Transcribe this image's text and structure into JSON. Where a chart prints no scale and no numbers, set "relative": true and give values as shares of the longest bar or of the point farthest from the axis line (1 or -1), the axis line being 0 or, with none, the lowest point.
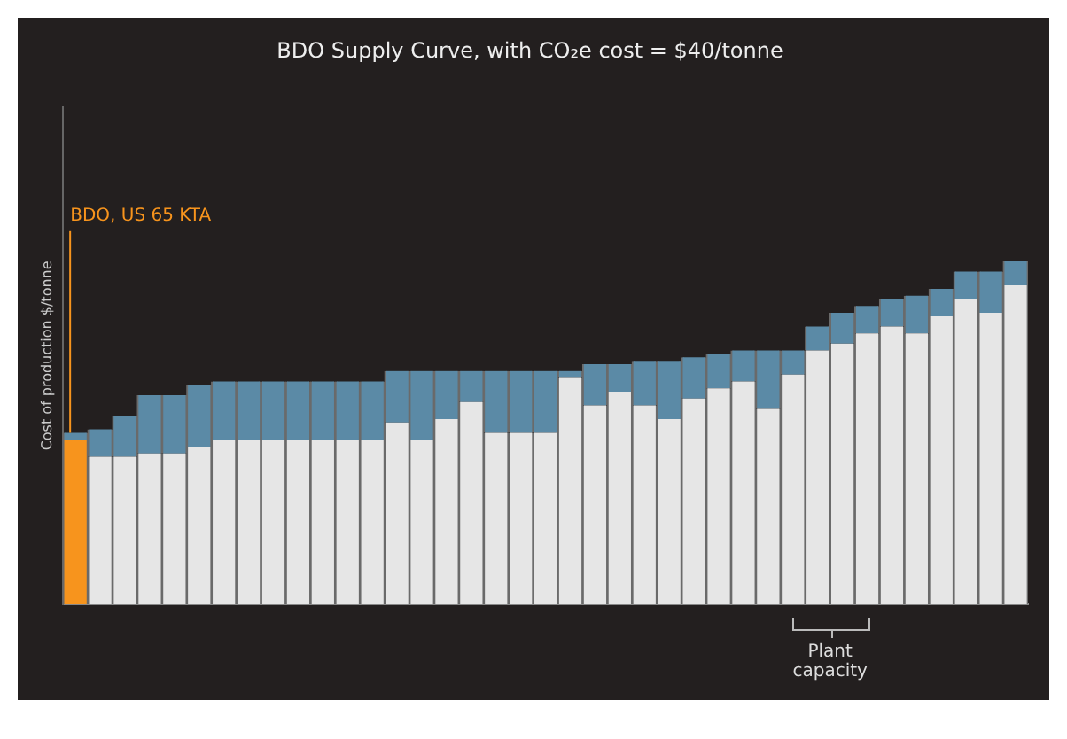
{
  "chart_data": {
    "type": "bar",
    "title": "BDO Supply Curve, with CO₂e cost = $40/tonne",
    "ylabel": "Cost of production $/tonne",
    "annotations": [
      "BDO, US 65 KTA",
      "Plant capacity"
    ],
    "categories": [
      null,
      null,
      null,
      null,
      null,
      null,
      null,
      null,
      null,
      null,
      null,
      null,
      null,
      null,
      null,
      null,
      null,
      null,
      null,
      null,
      null,
      null,
      null,
      null,
      null,
      null,
      null,
      null,
      null,
      null,
      null,
      null,
      null,
      null,
      null,
      null,
      null,
      null,
      null
    ],
    "stacked": true,
    "relative": true,
    "legend": false,
    "series": [
      {
        "colors": [
          "#f7941d",
          "#e6e6e6",
          "#e6e6e6",
          "#e6e6e6",
          "#e6e6e6",
          "#e6e6e6",
          "#e6e6e6",
          "#e6e6e6",
          "#e6e6e6",
          "#e6e6e6",
          "#e6e6e6",
          "#e6e6e6",
          "#e6e6e6",
          "#e6e6e6",
          "#e6e6e6",
          "#e6e6e6",
          "#e6e6e6",
          "#e6e6e6",
          "#e6e6e6",
          "#e6e6e6",
          "#e6e6e6",
          "#e6e6e6",
          "#e6e6e6",
          "#e6e6e6",
          "#e6e6e6",
          "#e6e6e6",
          "#e6e6e6",
          "#e6e6e6",
          "#e6e6e6",
          "#e6e6e6",
          "#e6e6e6",
          "#e6e6e6",
          "#e6e6e6",
          "#e6e6e6",
          "#e6e6e6",
          "#e6e6e6",
          "#e6e6e6",
          "#e6e6e6",
          "#e6e6e6"
        ],
        "values": [
          0.48,
          0.43,
          0.43,
          0.44,
          0.44,
          0.46,
          0.48,
          0.48,
          0.48,
          0.48,
          0.48,
          0.48,
          0.48,
          0.53,
          0.48,
          0.54,
          0.59,
          0.5,
          0.5,
          0.5,
          0.66,
          0.58,
          0.62,
          0.58,
          0.54,
          0.6,
          0.63,
          0.65,
          0.57,
          0.67,
          0.74,
          0.76,
          0.79,
          0.81,
          0.79,
          0.84,
          0.89,
          0.85,
          0.93
        ]
      },
      {
        "color": "#5b8aa6",
        "values": [
          0.02,
          0.08,
          0.12,
          0.17,
          0.17,
          0.18,
          0.17,
          0.17,
          0.17,
          0.17,
          0.17,
          0.17,
          0.17,
          0.15,
          0.2,
          0.14,
          0.09,
          0.18,
          0.18,
          0.18,
          0.02,
          0.12,
          0.08,
          0.13,
          0.17,
          0.12,
          0.1,
          0.09,
          0.17,
          0.07,
          0.07,
          0.09,
          0.08,
          0.08,
          0.11,
          0.08,
          0.08,
          0.12,
          0.07
        ]
      }
    ]
  }
}
